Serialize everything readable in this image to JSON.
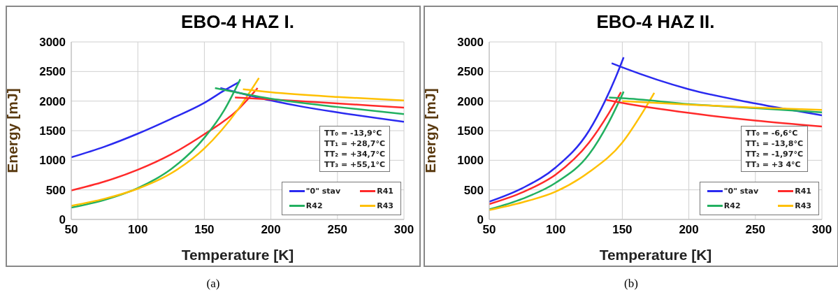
{
  "chart_data": [
    {
      "type": "line",
      "title": "EBO-4 HAZ I.",
      "xlabel": "Temperature [K]",
      "ylabel": "Energy [mJ]",
      "xlim": [
        50,
        300
      ],
      "xticks": [
        50,
        100,
        150,
        200,
        250,
        300
      ],
      "ylim": [
        0,
        3000
      ],
      "yticks": [
        0,
        500,
        1000,
        1500,
        2000,
        2500,
        3000
      ],
      "grid": true,
      "legend": "bottom right",
      "marker": "none",
      "line_style": "solid",
      "annotations": [
        "TT₀ = -13,9°C",
        "TT₁ = +28,7°C",
        "TT₂ = +34,7°C",
        "TT₃ = +55,1°C",
        "(a)"
      ],
      "series": [
        {
          "name": "\"0\" stav",
          "color": "#2a2af0",
          "x": [
            50,
            75,
            100,
            125,
            150,
            165,
            176
          ],
          "values": [
            1050,
            1230,
            1450,
            1700,
            1970,
            2180,
            2320
          ]
        },
        {
          "name": "R41",
          "color": "#ff2a2a",
          "x": [
            50,
            75,
            100,
            125,
            150,
            175,
            190
          ],
          "values": [
            490,
            640,
            840,
            1100,
            1440,
            1850,
            2220
          ]
        },
        {
          "name": "R42",
          "color": "#22b060",
          "x": [
            50,
            75,
            100,
            125,
            150,
            165,
            177
          ],
          "values": [
            200,
            330,
            530,
            850,
            1380,
            1850,
            2370
          ]
        },
        {
          "name": "R43",
          "color": "#ffc000",
          "x": [
            50,
            75,
            100,
            125,
            150,
            175,
            191
          ],
          "values": [
            230,
            350,
            520,
            780,
            1200,
            1850,
            2390
          ]
        },
        {
          "color": "#2a2af0",
          "x": [
            162,
            200,
            225,
            250,
            300
          ],
          "values": [
            2220,
            2010,
            1900,
            1810,
            1650
          ]
        },
        {
          "color": "#ff2a2a",
          "x": [
            173,
            200,
            250,
            300
          ],
          "values": [
            2060,
            2030,
            1960,
            1890
          ]
        },
        {
          "color": "#22b060",
          "x": [
            158,
            200,
            250,
            300
          ],
          "values": [
            2220,
            2040,
            1900,
            1780
          ]
        },
        {
          "color": "#ffc000",
          "x": [
            179,
            200,
            250,
            300
          ],
          "values": [
            2200,
            2150,
            2070,
            2010
          ]
        }
      ]
    },
    {
      "type": "line",
      "title": "EBO-4 HAZ II.",
      "xlabel": "Temperature [K]",
      "ylabel": "Energy [mJ]",
      "xlim": [
        50,
        300
      ],
      "xticks": [
        50,
        100,
        150,
        200,
        250,
        300
      ],
      "ylim": [
        0,
        3000
      ],
      "yticks": [
        0,
        500,
        1000,
        1500,
        2000,
        2500,
        3000
      ],
      "grid": true,
      "legend": "bottom right",
      "marker": "none",
      "line_style": "solid",
      "annotations": [
        "TT₀ = -6,6°C",
        "TT₁ = -13,8°C",
        "TT₂ = -1,97°C",
        "TT₃ = +3 4°C",
        "(b)"
      ],
      "series": [
        {
          "name": "\"0\" stav",
          "color": "#2a2af0",
          "x": [
            50,
            75,
            100,
            125,
            137,
            145,
            151
          ],
          "values": [
            300,
            530,
            880,
            1500,
            2000,
            2400,
            2740
          ]
        },
        {
          "name": "R41",
          "color": "#ff2a2a",
          "x": [
            50,
            75,
            100,
            125,
            140,
            149
          ],
          "values": [
            260,
            460,
            760,
            1300,
            1800,
            2150
          ]
        },
        {
          "name": "R42",
          "color": "#22b060",
          "x": [
            50,
            75,
            100,
            125,
            140,
            151
          ],
          "values": [
            170,
            350,
            620,
            1100,
            1650,
            2160
          ]
        },
        {
          "name": "R43",
          "color": "#ffc000",
          "x": [
            50,
            75,
            100,
            125,
            150,
            165,
            174
          ],
          "values": [
            160,
            290,
            470,
            800,
            1300,
            1800,
            2140
          ]
        },
        {
          "color": "#2a2af0",
          "x": [
            142,
            150,
            200,
            250,
            300
          ],
          "values": [
            2640,
            2570,
            2200,
            1960,
            1760
          ]
        },
        {
          "color": "#ff2a2a",
          "x": [
            138,
            150,
            200,
            250,
            300
          ],
          "values": [
            2020,
            1970,
            1800,
            1670,
            1570
          ]
        },
        {
          "color": "#22b060",
          "x": [
            140,
            150,
            200,
            250,
            300
          ],
          "values": [
            2060,
            2050,
            1950,
            1880,
            1810
          ]
        },
        {
          "color": "#ffc000",
          "x": [
            150,
            200,
            250,
            300
          ],
          "values": [
            2000,
            1940,
            1890,
            1850
          ]
        }
      ]
    }
  ]
}
